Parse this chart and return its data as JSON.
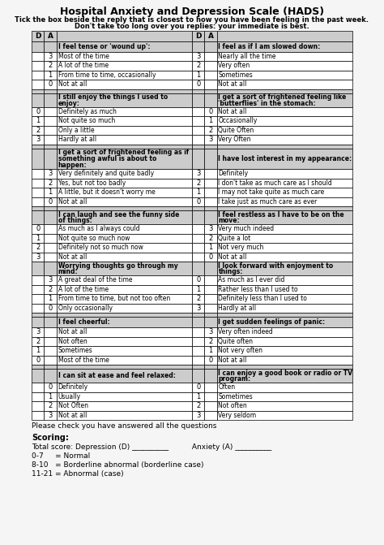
{
  "title": "Hospital Anxiety and Depression Scale (HADS)",
  "subtitle1": "Tick the box beside the reply that is closest to how you have been feeling in the past week.",
  "subtitle2": "Don't take too long over you replies: your immediate is best.",
  "bg_color": "#f5f5f5",
  "rows": [
    {
      "type": "question_header",
      "left": "I feel tense or 'wound up':",
      "right": "I feel as if I am slowed down:"
    },
    {
      "type": "answer",
      "ld": "",
      "la": "3",
      "left": "Most of the time",
      "rd": "3",
      "ra": "",
      "right": "Nearly all the time"
    },
    {
      "type": "answer",
      "ld": "",
      "la": "2",
      "left": "A lot of the time",
      "rd": "2",
      "ra": "",
      "right": "Very often"
    },
    {
      "type": "answer",
      "ld": "",
      "la": "1",
      "left": "From time to time, occasionally",
      "rd": "1",
      "ra": "",
      "right": "Sometimes"
    },
    {
      "type": "answer",
      "ld": "",
      "la": "0",
      "left": "Not at all",
      "rd": "0",
      "ra": "",
      "right": "Not at all"
    },
    {
      "type": "spacer"
    },
    {
      "type": "question_header",
      "left": "I still enjoy the things I used to\nenjoy:",
      "right": "I get a sort of frightened feeling like\n'butterflies' in the stomach:"
    },
    {
      "type": "answer",
      "ld": "0",
      "la": "",
      "left": "Definitely as much",
      "rd": "",
      "ra": "0",
      "right": "Not at all"
    },
    {
      "type": "answer",
      "ld": "1",
      "la": "",
      "left": "Not quite so much",
      "rd": "",
      "ra": "1",
      "right": "Occasionally"
    },
    {
      "type": "answer",
      "ld": "2",
      "la": "",
      "left": "Only a little",
      "rd": "",
      "ra": "2",
      "right": "Quite Often"
    },
    {
      "type": "answer",
      "ld": "3",
      "la": "",
      "left": "Hardly at all",
      "rd": "",
      "ra": "3",
      "right": "Very Often"
    },
    {
      "type": "spacer"
    },
    {
      "type": "question_header",
      "left": "I get a sort of frightened feeling as if\nsomething awful is about to\nhappen:",
      "right": "I have lost interest in my appearance:"
    },
    {
      "type": "answer",
      "ld": "",
      "la": "3",
      "left": "Very definitely and quite badly",
      "rd": "3",
      "ra": "",
      "right": "Definitely"
    },
    {
      "type": "answer",
      "ld": "",
      "la": "2",
      "left": "Yes, but not too badly",
      "rd": "2",
      "ra": "",
      "right": "I don't take as much care as I should"
    },
    {
      "type": "answer",
      "ld": "",
      "la": "1",
      "left": "A little, but it doesn't worry me",
      "rd": "1",
      "ra": "",
      "right": "I may not take quite as much care"
    },
    {
      "type": "answer",
      "ld": "",
      "la": "0",
      "left": "Not at all",
      "rd": "0",
      "ra": "",
      "right": "I take just as much care as ever"
    },
    {
      "type": "spacer"
    },
    {
      "type": "question_header",
      "left": "I can laugh and see the funny side\nof things:",
      "right": "I feel restless as I have to be on the\nmove:"
    },
    {
      "type": "answer",
      "ld": "0",
      "la": "",
      "left": "As much as I always could",
      "rd": "",
      "ra": "3",
      "right": "Very much indeed"
    },
    {
      "type": "answer",
      "ld": "1",
      "la": "",
      "left": "Not quite so much now",
      "rd": "",
      "ra": "2",
      "right": "Quite a lot"
    },
    {
      "type": "answer",
      "ld": "2",
      "la": "",
      "left": "Definitely not so much now",
      "rd": "",
      "ra": "1",
      "right": "Not very much"
    },
    {
      "type": "answer",
      "ld": "3",
      "la": "",
      "left": "Not at all",
      "rd": "",
      "ra": "0",
      "right": "Not at all"
    },
    {
      "type": "question_header",
      "left": "Worrying thoughts go through my\nmind:",
      "right": "I look forward with enjoyment to\nthings:"
    },
    {
      "type": "answer",
      "ld": "",
      "la": "3",
      "left": "A great deal of the time",
      "rd": "0",
      "ra": "",
      "right": "As much as I ever did"
    },
    {
      "type": "answer",
      "ld": "",
      "la": "2",
      "left": "A lot of the time",
      "rd": "1",
      "ra": "",
      "right": "Rather less than I used to"
    },
    {
      "type": "answer",
      "ld": "",
      "la": "1",
      "left": "From time to time, but not too often",
      "rd": "2",
      "ra": "",
      "right": "Definitely less than I used to"
    },
    {
      "type": "answer",
      "ld": "",
      "la": "0",
      "left": "Only occasionally",
      "rd": "3",
      "ra": "",
      "right": "Hardly at all"
    },
    {
      "type": "spacer"
    },
    {
      "type": "question_header",
      "left": "I feel cheerful:",
      "right": "I get sudden feelings of panic:"
    },
    {
      "type": "answer",
      "ld": "3",
      "la": "",
      "left": "Not at all",
      "rd": "",
      "ra": "3",
      "right": "Very often indeed"
    },
    {
      "type": "answer",
      "ld": "2",
      "la": "",
      "left": "Not often",
      "rd": "",
      "ra": "2",
      "right": "Quite often"
    },
    {
      "type": "answer",
      "ld": "1",
      "la": "",
      "left": "Sometimes",
      "rd": "",
      "ra": "1",
      "right": "Not very often"
    },
    {
      "type": "answer",
      "ld": "0",
      "la": "",
      "left": "Most of the time",
      "rd": "",
      "ra": "0",
      "right": "Not at all"
    },
    {
      "type": "spacer"
    },
    {
      "type": "question_header",
      "left": "I can sit at ease and feel relaxed:",
      "right": "I can enjoy a good book or radio or TV\nprogram:"
    },
    {
      "type": "answer",
      "ld": "",
      "la": "0",
      "left": "Definitely",
      "rd": "0",
      "ra": "",
      "right": "Often"
    },
    {
      "type": "answer",
      "ld": "",
      "la": "1",
      "left": "Usually",
      "rd": "1",
      "ra": "",
      "right": "Sometimes"
    },
    {
      "type": "answer",
      "ld": "",
      "la": "2",
      "left": "Not Often",
      "rd": "2",
      "ra": "",
      "right": "Not often"
    },
    {
      "type": "answer",
      "ld": "",
      "la": "3",
      "left": "Not at all",
      "rd": "3",
      "ra": "",
      "right": "Very seldom"
    }
  ],
  "footer": "Please check you have answered all the questions",
  "scoring_title": "Scoring:",
  "scoring_lines": [
    "Total score: Depression (D) __________          Anxiety (A) __________",
    "0-7     = Normal",
    "8-10   = Borderline abnormal (borderline case)",
    "11-21 = Abnormal (case)"
  ]
}
